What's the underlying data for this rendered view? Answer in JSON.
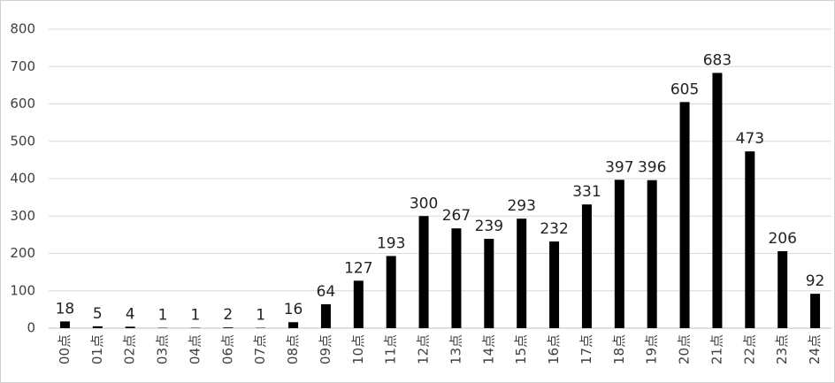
{
  "chart_data": {
    "type": "bar",
    "categories": [
      "00点",
      "01点",
      "02点",
      "03点",
      "04点",
      "06点",
      "07点",
      "08点",
      "09点",
      "10点",
      "11点",
      "12点",
      "13点",
      "14点",
      "15点",
      "16点",
      "17点",
      "18点",
      "19点",
      "20点",
      "21点",
      "22点",
      "23点",
      "24点"
    ],
    "values": [
      18,
      5,
      4,
      1,
      1,
      2,
      1,
      16,
      64,
      127,
      193,
      300,
      267,
      239,
      293,
      232,
      331,
      397,
      396,
      605,
      683,
      473,
      206,
      92
    ],
    "color": "#000000",
    "ylim": [
      0,
      800
    ],
    "yticks": [
      0,
      100,
      200,
      300,
      400,
      500,
      600,
      700,
      800
    ],
    "grid": true
  }
}
